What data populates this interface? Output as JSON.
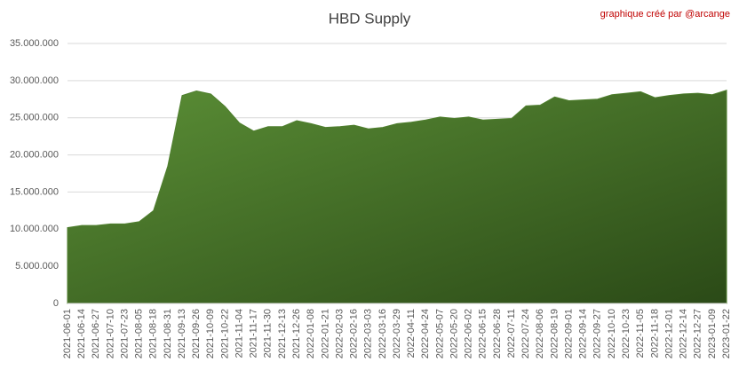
{
  "chart_data": {
    "type": "area",
    "title": "HBD Supply",
    "annotation": "graphique créé par @arcange",
    "categories": [
      "2021-06-01",
      "2021-06-14",
      "2021-06-27",
      "2021-07-10",
      "2021-07-23",
      "2021-08-05",
      "2021-08-18",
      "2021-08-31",
      "2021-09-13",
      "2021-09-26",
      "2021-10-09",
      "2021-10-22",
      "2021-11-04",
      "2021-11-17",
      "2021-11-30",
      "2021-12-13",
      "2021-12-26",
      "2022-01-08",
      "2022-01-21",
      "2022-02-03",
      "2022-02-16",
      "2022-03-03",
      "2022-03-16",
      "2022-03-29",
      "2022-04-11",
      "2022-04-24",
      "2022-05-07",
      "2022-05-20",
      "2022-06-02",
      "2022-06-15",
      "2022-06-28",
      "2022-07-11",
      "2022-07-24",
      "2022-08-06",
      "2022-08-19",
      "2022-09-01",
      "2022-09-14",
      "2022-09-27",
      "2022-10-10",
      "2022-10-23",
      "2022-11-05",
      "2022-11-18",
      "2022-12-01",
      "2022-12-14",
      "2022-12-27",
      "2023-01-09",
      "2023-01-22"
    ],
    "values": [
      10200000,
      10500000,
      10500000,
      10700000,
      10700000,
      11000000,
      12500000,
      18500000,
      28000000,
      28600000,
      28200000,
      26500000,
      24300000,
      23200000,
      23800000,
      23800000,
      24600000,
      24200000,
      23700000,
      23800000,
      24000000,
      23500000,
      23700000,
      24200000,
      24400000,
      24700000,
      25100000,
      24900000,
      25100000,
      24700000,
      24800000,
      24900000,
      26600000,
      26700000,
      27800000,
      27300000,
      27400000,
      27500000,
      28100000,
      28300000,
      28500000,
      27700000,
      28000000,
      28200000,
      28300000,
      28100000,
      28700000
    ],
    "color": "#4f7f2e",
    "ylim": [
      0,
      35000000
    ],
    "yticks": [
      0,
      {
        "value": 5000000,
        "label": "5.000.000"
      },
      {
        "value": 10000000,
        "label": "10.000.000"
      },
      {
        "value": 15000000,
        "label": "15.000.000"
      },
      {
        "value": 20000000,
        "label": "20.000.000"
      },
      {
        "value": 25000000,
        "label": "25.000.000"
      },
      {
        "value": 30000000,
        "label": "30.000.000"
      },
      {
        "value": 35000000,
        "label": "35.000.000"
      }
    ],
    "grid": true
  }
}
